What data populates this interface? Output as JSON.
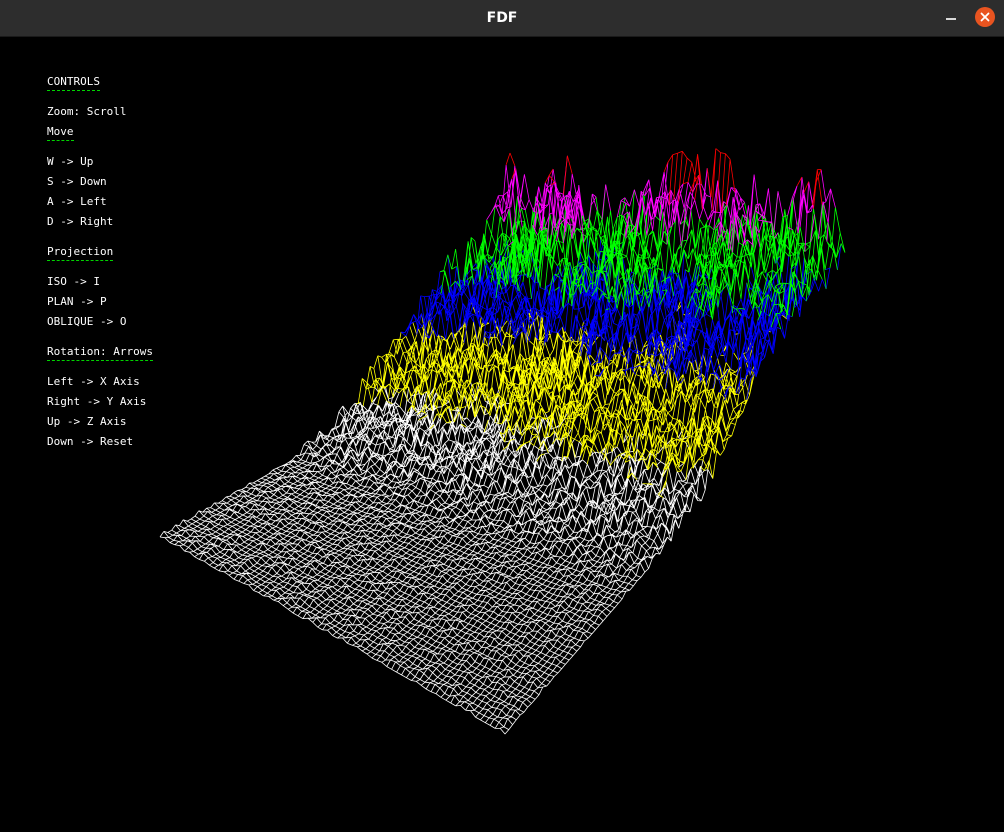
{
  "window": {
    "title": "FDF"
  },
  "controls": {
    "heading": "CONTROLS",
    "zoom": "Zoom: Scroll",
    "move_heading": "Move",
    "move": [
      "W -> Up",
      "S -> Down",
      "A -> Left",
      "D -> Right"
    ],
    "projection_heading": "Projection",
    "projection": [
      "ISO -> I",
      "PLAN -> P",
      "OBLIQUE -> O"
    ],
    "rotation_heading": "Rotation: Arrows",
    "rotation": [
      "Left -> X Axis",
      "Right -> Y Axis",
      "Up -> Z Axis",
      "Down -> Reset"
    ]
  },
  "colors": {
    "background": "#000000",
    "titlebar": "#2d2d2d",
    "close_button": "#e95420",
    "heading_underline": "#00d400",
    "wire_low": "#ffffff",
    "wire_mid_low": "#ffff00",
    "wire_mid": "#0000ff",
    "wire_mid_high": "#00ff00",
    "wire_high": "#ff00ff",
    "wire_peak": "#ff0000"
  }
}
